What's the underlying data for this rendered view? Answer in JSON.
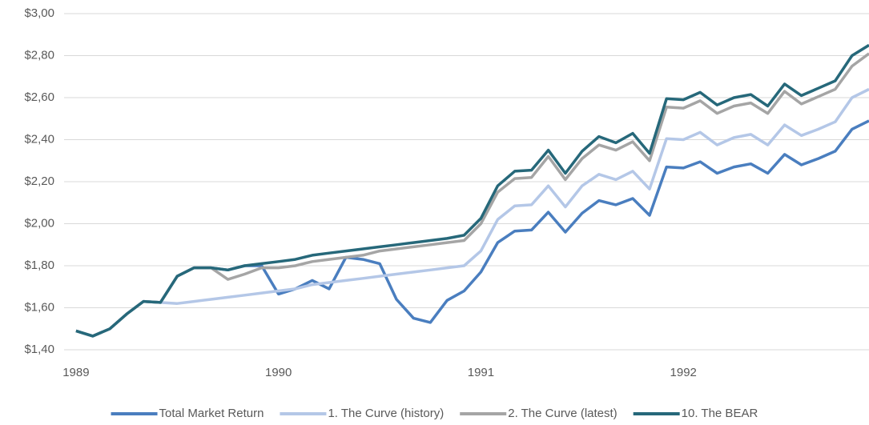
{
  "chart_data": {
    "type": "line",
    "x": [
      1989,
      1989.083,
      1989.167,
      1989.25,
      1989.333,
      1989.417,
      1989.5,
      1989.583,
      1989.667,
      1989.75,
      1989.833,
      1989.917,
      1990,
      1990.083,
      1990.167,
      1990.25,
      1990.333,
      1990.417,
      1990.5,
      1990.583,
      1990.667,
      1990.75,
      1990.833,
      1990.917,
      1991,
      1991.083,
      1991.167,
      1991.25,
      1991.333,
      1991.417,
      1991.5,
      1991.583,
      1991.667,
      1991.75,
      1991.833,
      1991.917,
      1992,
      1992.083,
      1992.167,
      1992.25,
      1992.333,
      1992.417,
      1992.5,
      1992.583,
      1992.667,
      1992.75,
      1992.833,
      1992.917
    ],
    "series": [
      {
        "name": "Total Market Return",
        "color": "#4a7ebf",
        "values": [
          1.49,
          1.465,
          1.5,
          1.57,
          1.63,
          1.625,
          1.75,
          1.79,
          1.79,
          1.78,
          1.8,
          1.8,
          1.665,
          1.69,
          1.73,
          1.69,
          1.84,
          1.83,
          1.81,
          1.64,
          1.55,
          1.53,
          1.635,
          1.68,
          1.77,
          1.91,
          1.965,
          1.97,
          2.055,
          1.96,
          2.05,
          2.11,
          2.09,
          2.12,
          2.04,
          2.27,
          2.265,
          2.295,
          2.24,
          2.27,
          2.285,
          2.24,
          2.33,
          2.28,
          2.31,
          2.345,
          2.45,
          2.49
        ]
      },
      {
        "name": "1. The Curve (history)",
        "color": "#b4c7e7",
        "values": [
          1.49,
          1.465,
          1.5,
          1.57,
          1.63,
          1.625,
          1.62,
          1.63,
          1.64,
          1.65,
          1.66,
          1.67,
          1.68,
          1.69,
          1.71,
          1.72,
          1.73,
          1.74,
          1.75,
          1.76,
          1.77,
          1.78,
          1.79,
          1.8,
          1.87,
          2.02,
          2.085,
          2.09,
          2.18,
          2.08,
          2.18,
          2.235,
          2.21,
          2.25,
          2.165,
          2.405,
          2.4,
          2.435,
          2.375,
          2.41,
          2.425,
          2.375,
          2.47,
          2.42,
          2.45,
          2.485,
          2.6,
          2.64
        ]
      },
      {
        "name": "2. The Curve (latest)",
        "color": "#a5a5a5",
        "values": [
          1.49,
          1.465,
          1.5,
          1.57,
          1.63,
          1.625,
          1.75,
          1.79,
          1.79,
          1.735,
          1.76,
          1.79,
          1.79,
          1.8,
          1.82,
          1.83,
          1.84,
          1.85,
          1.87,
          1.88,
          1.89,
          1.9,
          1.91,
          1.92,
          2.0,
          2.15,
          2.215,
          2.22,
          2.32,
          2.21,
          2.31,
          2.375,
          2.35,
          2.39,
          2.3,
          2.555,
          2.55,
          2.585,
          2.525,
          2.56,
          2.575,
          2.525,
          2.63,
          2.57,
          2.605,
          2.64,
          2.75,
          2.81
        ]
      },
      {
        "name": "10. The BEAR",
        "color": "#26687a",
        "values": [
          1.49,
          1.465,
          1.5,
          1.57,
          1.63,
          1.625,
          1.75,
          1.79,
          1.79,
          1.78,
          1.8,
          1.81,
          1.82,
          1.83,
          1.85,
          1.86,
          1.87,
          1.88,
          1.89,
          1.9,
          1.91,
          1.92,
          1.93,
          1.945,
          2.025,
          2.18,
          2.25,
          2.255,
          2.35,
          2.24,
          2.345,
          2.415,
          2.385,
          2.43,
          2.335,
          2.595,
          2.59,
          2.625,
          2.565,
          2.6,
          2.615,
          2.56,
          2.665,
          2.61,
          2.645,
          2.68,
          2.8,
          2.85
        ]
      }
    ],
    "xlim": [
      1988.941,
      1992.917
    ],
    "xticks": [
      1989,
      1990,
      1991,
      1992
    ],
    "ylim": [
      1.4,
      3.0
    ],
    "yticks": [
      {
        "value": 1.4,
        "label": "$1,40"
      },
      {
        "value": 1.6,
        "label": "$1,60"
      },
      {
        "value": 1.8,
        "label": "$1,80"
      },
      {
        "value": 2.0,
        "label": "$2,00"
      },
      {
        "value": 2.2,
        "label": "$2,20"
      },
      {
        "value": 2.4,
        "label": "$2,40"
      },
      {
        "value": 2.6,
        "label": "$2,60"
      },
      {
        "value": 2.8,
        "label": "$2,80"
      },
      {
        "value": 3.0,
        "label": "$3,00"
      }
    ],
    "grid": true,
    "legend": "bottom"
  }
}
